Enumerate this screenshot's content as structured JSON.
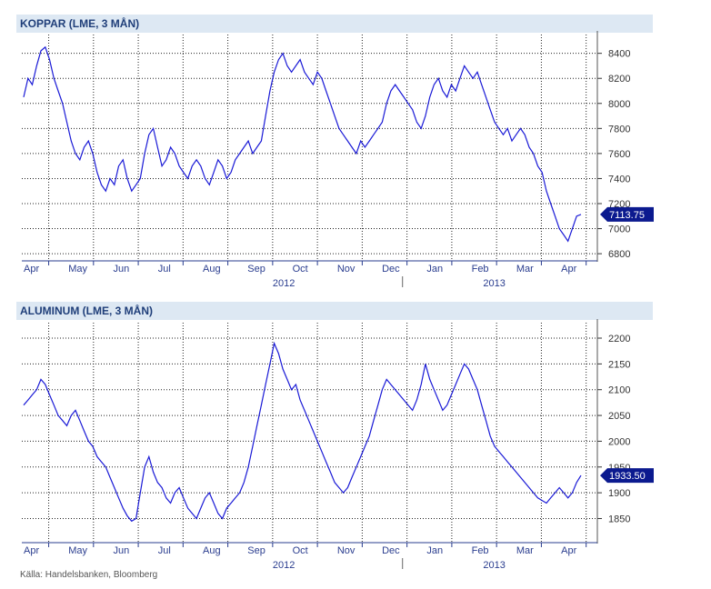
{
  "source": "Källa: Handelsbanken, Bloomberg",
  "colors": {
    "line": "#1a1ad6",
    "title_bg": "#dde8f3",
    "title_text": "#1f3e79",
    "axis": "#2a3d8f"
  },
  "chart_data": [
    {
      "type": "line",
      "title": "KOPPAR (LME, 3 MÅN)",
      "months": [
        "Apr",
        "May",
        "Jun",
        "Jul",
        "Aug",
        "Sep",
        "Oct",
        "Nov",
        "Dec",
        "Jan",
        "Feb",
        "Mar",
        "Apr"
      ],
      "years": [
        "2012",
        "2013"
      ],
      "ylim": [
        6750,
        8550
      ],
      "yticks": [
        6800,
        7000,
        7200,
        7400,
        7600,
        7800,
        8000,
        8200,
        8400
      ],
      "grid": true,
      "last_value_label": "7113.75",
      "series": [
        {
          "values": [
            8050,
            8200,
            8150,
            8300,
            8420,
            8450,
            8350,
            8200,
            8100,
            8000,
            7850,
            7700,
            7600,
            7550,
            7650,
            7700,
            7600,
            7450,
            7350,
            7300,
            7400,
            7350,
            7500,
            7550,
            7400,
            7300,
            7350,
            7400,
            7600,
            7750,
            7800,
            7650,
            7500,
            7550,
            7650,
            7600,
            7500,
            7450,
            7400,
            7500,
            7550,
            7500,
            7400,
            7350,
            7450,
            7550,
            7500,
            7400,
            7450,
            7550,
            7600,
            7650,
            7700,
            7600,
            7650,
            7700,
            7900,
            8100,
            8250,
            8350,
            8400,
            8300,
            8250,
            8300,
            8350,
            8250,
            8200,
            8150,
            8250,
            8200,
            8100,
            8000,
            7900,
            7800,
            7750,
            7700,
            7650,
            7600,
            7700,
            7650,
            7700,
            7750,
            7800,
            7850,
            8000,
            8100,
            8150,
            8100,
            8050,
            8000,
            7950,
            7850,
            7800,
            7900,
            8050,
            8150,
            8200,
            8100,
            8050,
            8150,
            8100,
            8200,
            8300,
            8250,
            8200,
            8250,
            8150,
            8050,
            7950,
            7850,
            7800,
            7750,
            7800,
            7700,
            7750,
            7800,
            7750,
            7650,
            7600,
            7500,
            7450,
            7300,
            7200,
            7100,
            7000,
            6950,
            6900,
            7000,
            7100,
            7113.75
          ]
        }
      ]
    },
    {
      "type": "line",
      "title": "ALUMINUM (LME, 3 MÅN)",
      "months": [
        "Apr",
        "May",
        "Jun",
        "Jul",
        "Aug",
        "Sep",
        "Oct",
        "Nov",
        "Dec",
        "Jan",
        "Feb",
        "Mar",
        "Apr"
      ],
      "years": [
        "2012",
        "2013"
      ],
      "ylim": [
        1805,
        2230
      ],
      "yticks": [
        1850,
        1900,
        1950,
        2000,
        2050,
        2100,
        2150,
        2200
      ],
      "grid": true,
      "last_value_label": "1933.50",
      "series": [
        {
          "values": [
            2070,
            2080,
            2090,
            2100,
            2120,
            2110,
            2090,
            2070,
            2050,
            2040,
            2030,
            2050,
            2060,
            2040,
            2020,
            2000,
            1990,
            1970,
            1960,
            1950,
            1930,
            1910,
            1890,
            1870,
            1855,
            1845,
            1850,
            1900,
            1950,
            1970,
            1940,
            1920,
            1910,
            1890,
            1880,
            1900,
            1910,
            1890,
            1870,
            1860,
            1850,
            1870,
            1890,
            1900,
            1880,
            1860,
            1850,
            1870,
            1880,
            1890,
            1900,
            1920,
            1950,
            1990,
            2030,
            2070,
            2110,
            2150,
            2190,
            2170,
            2140,
            2120,
            2100,
            2110,
            2080,
            2060,
            2040,
            2020,
            2000,
            1980,
            1960,
            1940,
            1920,
            1910,
            1900,
            1910,
            1930,
            1950,
            1970,
            1990,
            2010,
            2040,
            2070,
            2100,
            2120,
            2110,
            2100,
            2090,
            2080,
            2070,
            2060,
            2080,
            2110,
            2150,
            2120,
            2100,
            2080,
            2060,
            2070,
            2090,
            2110,
            2130,
            2150,
            2140,
            2120,
            2100,
            2070,
            2040,
            2010,
            1990,
            1980,
            1970,
            1960,
            1950,
            1940,
            1930,
            1920,
            1910,
            1900,
            1890,
            1885,
            1880,
            1890,
            1900,
            1910,
            1900,
            1890,
            1900,
            1920,
            1933.5
          ]
        }
      ]
    }
  ]
}
